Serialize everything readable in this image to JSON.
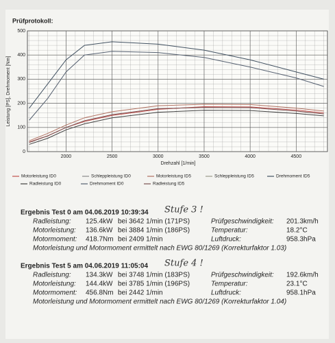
{
  "header": {
    "title": "Prüfprotokoll:"
  },
  "chart_data": {
    "type": "line",
    "x_label": "Drehzahl [1/min]",
    "y_label": "Leistung [PS], Drehmoment [Nm]",
    "x": [
      1600,
      1800,
      2000,
      2200,
      2500,
      3000,
      3500,
      4000,
      4500,
      4800
    ],
    "xlim": [
      1580,
      4840
    ],
    "xticks": [
      2000,
      2500,
      3000,
      3500,
      4000,
      4500
    ],
    "ylim": [
      0,
      500
    ],
    "yticks": [
      0,
      100,
      200,
      300,
      400,
      500
    ],
    "grid": true,
    "series": [
      {
        "name": "Motorleistung ID0",
        "color": "#c0504d",
        "values": [
          40,
          65,
          100,
          125,
          150,
          175,
          186,
          185,
          172,
          160
        ]
      },
      {
        "name": "Schleppleistung ID0",
        "color": "#8a8a8a",
        "values": [
          null,
          null,
          null,
          null,
          null,
          null,
          null,
          null,
          null,
          null
        ]
      },
      {
        "name": "Motorleistung ID5",
        "color": "#b07060",
        "values": [
          45,
          75,
          110,
          140,
          165,
          190,
          196,
          195,
          180,
          168
        ]
      },
      {
        "name": "Schleppleistung ID5",
        "color": "#9a9a8a",
        "values": [
          null,
          null,
          null,
          null,
          null,
          null,
          null,
          null,
          null,
          null
        ]
      },
      {
        "name": "Drehmoment ID5",
        "color": "#405060",
        "values": [
          180,
          280,
          380,
          440,
          455,
          445,
          420,
          380,
          330,
          300
        ]
      },
      {
        "name": "Radleistung ID0",
        "color": "#404040",
        "values": [
          30,
          55,
          90,
          115,
          140,
          163,
          171,
          170,
          158,
          148
        ]
      },
      {
        "name": "Drehmoment ID0",
        "color": "#556070",
        "values": [
          130,
          220,
          330,
          400,
          415,
          410,
          390,
          350,
          305,
          270
        ]
      },
      {
        "name": "Radleistung ID5",
        "color": "#7a5050",
        "values": [
          38,
          65,
          100,
          128,
          153,
          178,
          183,
          182,
          168,
          156
        ]
      }
    ]
  },
  "results": [
    {
      "heading": "Ergebnis Test 0 am 04.06.2019 10:39:34",
      "annotation": "Stufe 3 !",
      "rows": [
        [
          "Radleistung:",
          "125.4kW",
          "bei 3642 1/min (171PS)",
          "Prüfgeschwindigkeit:",
          "201.3km/h"
        ],
        [
          "Motorleistung:",
          "136.6kW",
          "bei 3884 1/min (186PS)",
          "Temperatur:",
          "18.2°C"
        ],
        [
          "Motormoment:",
          "418.7Nm",
          "bei 2409 1/min",
          "Luftdruck:",
          "958.3hPa"
        ]
      ],
      "note": "Motorleistung und Motormoment ermittelt nach EWG 80/1269 (Korrekturfaktor 1.03)"
    },
    {
      "heading": "Ergebnis Test 5 am 04.06.2019 11:05:04",
      "annotation": "Stufe 4 !",
      "rows": [
        [
          "Radleistung:",
          "134.3kW",
          "bei 3748 1/min (183PS)",
          "Prüfgeschwindigkeit:",
          "192.6km/h"
        ],
        [
          "Motorleistung:",
          "144.4kW",
          "bei 3785 1/min (196PS)",
          "Temperatur:",
          "23.1°C"
        ],
        [
          "Motormoment:",
          "456.8Nm",
          "bei 2442 1/min",
          "Luftdruck:",
          "958.1hPa"
        ]
      ],
      "note": "Motorleistung und Motormoment ermittelt nach EWG 80/1269 (Korrekturfaktor 1.04)"
    }
  ]
}
